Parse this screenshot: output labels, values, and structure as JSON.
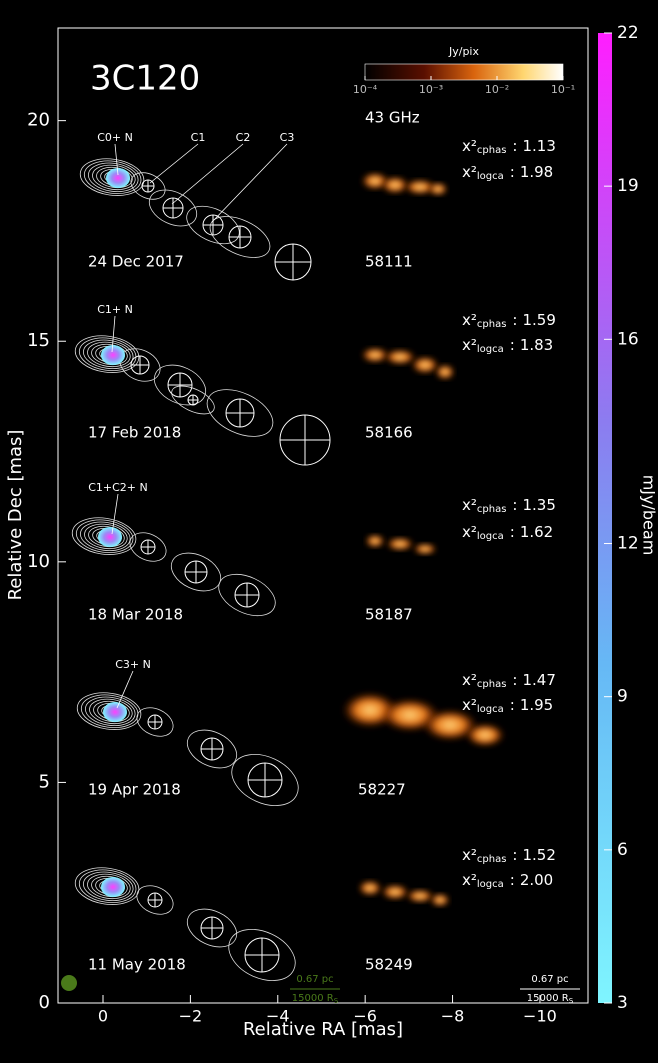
{
  "chart_data": {
    "type": "image",
    "title": "3C120",
    "frequency": "43 GHz",
    "xlabel": "Relative RA [mas]",
    "ylabel": "Relative Dec [mas]",
    "xlim": [
      1.03,
      -11.1
    ],
    "xticks": [
      0,
      {
        "value": -2,
        "label": "−2"
      },
      {
        "value": -4,
        "label": "−4"
      },
      {
        "value": -6,
        "label": "−6"
      },
      {
        "value": -8,
        "label": "−8"
      },
      {
        "value": -10,
        "label": "−10"
      }
    ],
    "ylim": [
      0,
      22.1
    ],
    "yticks": [
      0,
      5,
      10,
      15,
      20
    ],
    "colorbar": {
      "label": "mJy/beam",
      "lim": [
        3,
        22
      ],
      "ticks": [
        3,
        6,
        9,
        12,
        16,
        19,
        22
      ]
    },
    "image_colorbar": {
      "label": "Jy/pix",
      "scale": "log",
      "lim": [
        0.0001,
        0.1
      ],
      "ticks": [
        {
          "value": 0.0001,
          "label": "10⁻⁴"
        },
        {
          "value": 0.001,
          "label": "10⁻³"
        },
        {
          "value": 0.01,
          "label": "10⁻²"
        },
        {
          "value": 0.1,
          "label": "10⁻¹"
        }
      ]
    },
    "chi_symbol": "x²",
    "separator": ":",
    "chi_terms": [
      "cphas",
      "logca"
    ],
    "epochs": [
      {
        "date": "24 Dec 2017",
        "mjd": 58111,
        "chi2": [
          "1.13",
          "1.98"
        ],
        "components": [
          "C0+ N",
          "C1",
          "C2",
          "C3"
        ]
      },
      {
        "date": "17 Feb 2018",
        "mjd": 58166,
        "chi2": [
          "1.59",
          "1.83"
        ],
        "components": [
          "C1+ N"
        ]
      },
      {
        "date": "18 Mar 2018",
        "mjd": 58187,
        "chi2": [
          "1.35",
          "1.62"
        ],
        "components": [
          "C1+C2+ N"
        ]
      },
      {
        "date": "19 Apr 2018",
        "mjd": 58227,
        "chi2": [
          "1.47",
          "1.95"
        ],
        "components": [
          "C3+ N"
        ]
      },
      {
        "date": "11 May 2018",
        "mjd": 58249,
        "chi2": [
          "1.52",
          "2.00"
        ],
        "components": []
      }
    ],
    "scale_bar": {
      "length": "0.67 pc",
      "equivalent": "15000 R",
      "equivalent_sub": "S"
    }
  }
}
